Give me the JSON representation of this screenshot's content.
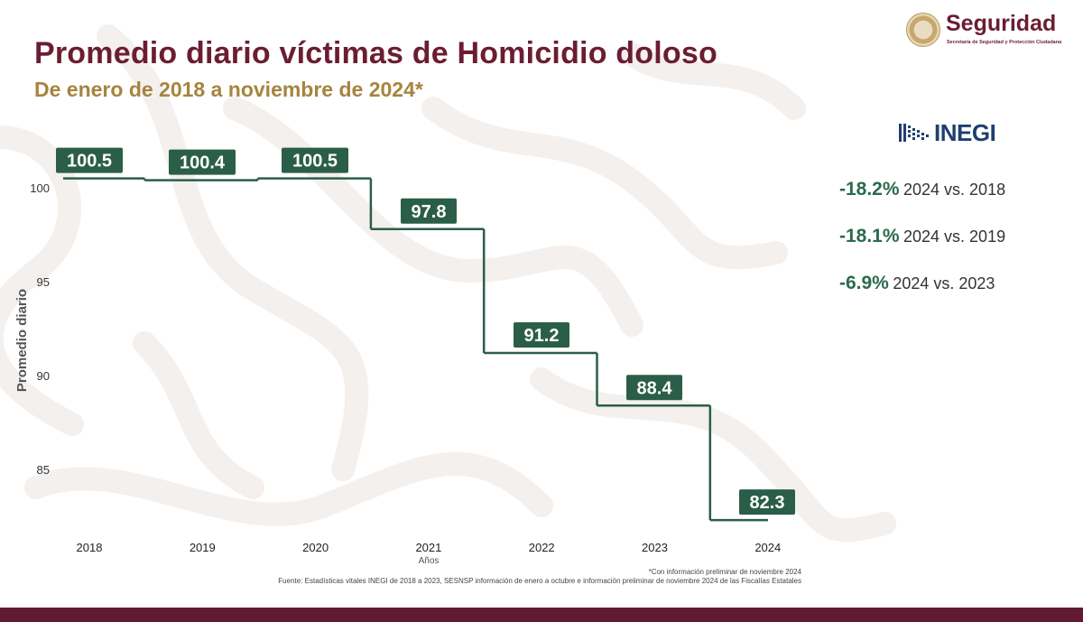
{
  "header": {
    "title": "Promedio diario víctimas de Homicidio doloso",
    "subtitle": "De enero de 2018 a noviembre de 2024*"
  },
  "logo": {
    "word": "Seguridad",
    "subtext": "Secretaría de Seguridad y Protección Ciudadana"
  },
  "inegi": {
    "label": "INEGI"
  },
  "comparisons": [
    {
      "pct": "-18.2%",
      "label": "2024 vs. 2018"
    },
    {
      "pct": "-18.1%",
      "label": "2024 vs. 2019"
    },
    {
      "pct": "-6.9%",
      "label": "2024 vs. 2023"
    }
  ],
  "colors": {
    "title": "#6b1d33",
    "subtitle": "#a6843f",
    "line": "#2b5e49",
    "label_box": "#2b5e49",
    "label_text": "#ffffff",
    "accent_pct": "#2b6a4e",
    "bottom_bar": "#621a33"
  },
  "chart_data": {
    "type": "line",
    "step": true,
    "categories": [
      "2018",
      "2019",
      "2020",
      "2021",
      "2022",
      "2023",
      "2024"
    ],
    "values": [
      100.5,
      100.4,
      100.5,
      97.8,
      91.2,
      88.4,
      82.3
    ],
    "data_labels": [
      "100.5",
      "100.4",
      "100.5",
      "97.8",
      "91.2",
      "88.4",
      "82.3"
    ],
    "xlabel": "Años",
    "ylabel": "Promedio diario",
    "yticks": [
      85,
      90,
      95,
      100
    ],
    "ylim": [
      82.3,
      100.5
    ],
    "grid": false
  },
  "footnote": "*Con información preliminar de noviembre 2024",
  "source": "Fuente: Estadísticas vitales INEGI de 2018 a 2023, SESNSP información de enero a octubre e información preliminar de noviembre 2024 de las Fiscalías Estatales"
}
